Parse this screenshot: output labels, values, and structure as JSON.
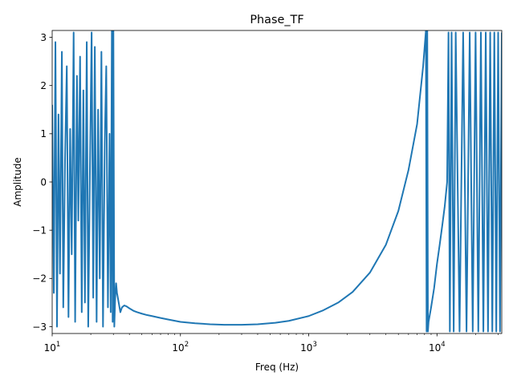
{
  "chart_data": {
    "type": "line",
    "title": "Phase_TF",
    "xlabel": "Freq (Hz)",
    "ylabel": "Amplitude",
    "x_scale": "log",
    "xlim": [
      10,
      32000
    ],
    "ylim": [
      -3.14159,
      3.14159
    ],
    "grid": false,
    "legend": "none",
    "line_color": "#1f77b4",
    "x_ticks": [
      {
        "value": 10,
        "base": "10",
        "exp": "1"
      },
      {
        "value": 100,
        "base": "10",
        "exp": "2"
      },
      {
        "value": 1000,
        "base": "10",
        "exp": "3"
      },
      {
        "value": 10000,
        "base": "10",
        "exp": "4"
      }
    ],
    "y_ticks": [
      {
        "value": -3,
        "label": "−3"
      },
      {
        "value": -2,
        "label": "−2"
      },
      {
        "value": -1,
        "label": "−1"
      },
      {
        "value": 0,
        "label": "0"
      },
      {
        "value": 1,
        "label": "1"
      },
      {
        "value": 2,
        "label": "2"
      },
      {
        "value": 3,
        "label": "3"
      }
    ],
    "series": [
      {
        "x": [
          10,
          10.3,
          10.6,
          10.9,
          11.2,
          11.5,
          11.9,
          12.2,
          12.6,
          13,
          13.4,
          13.8,
          14.2,
          14.7,
          15.1,
          15.6,
          16,
          16.5,
          17,
          17.5,
          18,
          18.6,
          19.1,
          19.7,
          20.3,
          20.9,
          21.5,
          22.2,
          22.8,
          23.5,
          24.2,
          24.9,
          25.7,
          26.4,
          27.2,
          28,
          28.6,
          29.2,
          29.6,
          30,
          30.5,
          31,
          31.5,
          32,
          33,
          34,
          35,
          36.5,
          38,
          40,
          43,
          46,
          50,
          55,
          60,
          70,
          80,
          100,
          130,
          170,
          220,
          300,
          400,
          550,
          700,
          1000,
          1300,
          1700,
          2200,
          3000,
          4000,
          5000,
          6000,
          7000,
          7800,
          8200,
          8300,
          8400,
          8500,
          8600,
          9000,
          9500,
          10000,
          10500,
          11000,
          11500,
          12000,
          12300,
          12600,
          13000,
          13500,
          14000,
          15000,
          16000,
          17000,
          18000,
          19000,
          20000,
          21000,
          22000,
          23000,
          24000,
          25000,
          26000,
          27000,
          28000,
          29000,
          30000,
          31000,
          32000
        ],
        "y": [
          1.6,
          -2.3,
          2.9,
          -3.0,
          1.4,
          -1.9,
          2.7,
          -2.6,
          0.5,
          2.4,
          -2.8,
          1.1,
          -1.5,
          3.1,
          -2.9,
          2.2,
          -0.8,
          2.6,
          -2.7,
          1.9,
          -2.5,
          2.9,
          -3.0,
          0.3,
          3.1,
          -2.4,
          2.8,
          -2.9,
          1.5,
          -2.0,
          2.7,
          -3.0,
          0.8,
          2.4,
          -2.6,
          1.0,
          -2.7,
          3.14,
          -2.9,
          3.14,
          -3.0,
          -2.4,
          -2.1,
          -2.3,
          -2.5,
          -2.7,
          -2.6,
          -2.56,
          -2.58,
          -2.62,
          -2.67,
          -2.7,
          -2.73,
          -2.76,
          -2.78,
          -2.82,
          -2.85,
          -2.9,
          -2.93,
          -2.95,
          -2.96,
          -2.96,
          -2.95,
          -2.92,
          -2.88,
          -2.78,
          -2.66,
          -2.5,
          -2.28,
          -1.88,
          -1.3,
          -0.6,
          0.25,
          1.2,
          2.4,
          3.14,
          -3.1,
          3.14,
          -3.1,
          -2.9,
          -2.6,
          -2.2,
          -1.7,
          -1.3,
          -0.9,
          -0.5,
          0.0,
          3.1,
          -3.1,
          3.1,
          -3.1,
          3.1,
          -3.1,
          3.1,
          -3.1,
          3.1,
          -3.1,
          3.1,
          -3.1,
          3.1,
          -3.1,
          3.1,
          -3.1,
          3.1,
          -3.1,
          3.1,
          -3.1,
          3.1,
          -3.1,
          3.1
        ]
      }
    ]
  }
}
